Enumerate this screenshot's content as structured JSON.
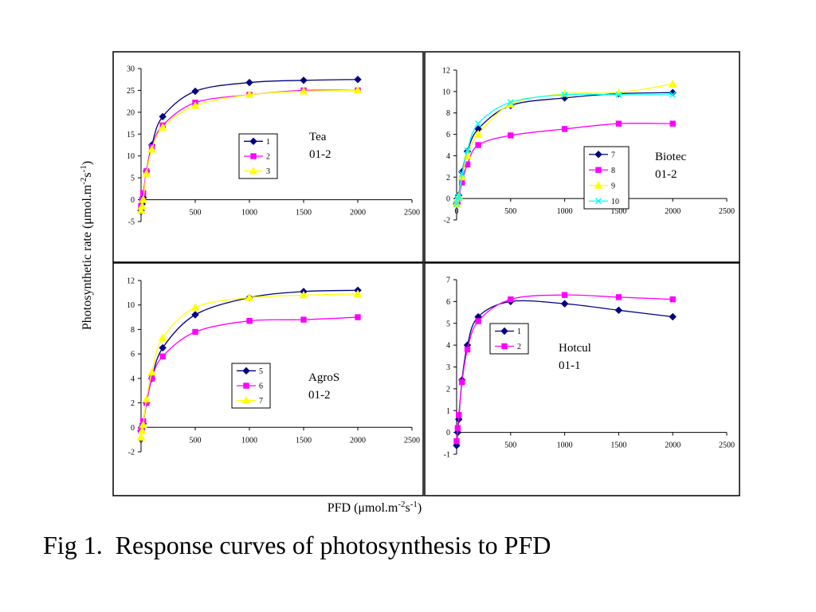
{
  "figure": {
    "caption": "Fig 1.  Response curves of photosynthesis to PFD",
    "ylabel": "Photosynthetic rate (μmol.m-2s-1)",
    "xlabel": "PFD (μmol.m-2s-1)"
  },
  "chart_data": [
    {
      "type": "line",
      "annotation": [
        "Tea",
        "01-2"
      ],
      "xlim": [
        0,
        2500
      ],
      "ylim": [
        -5,
        30
      ],
      "xticks": [
        0,
        500,
        1000,
        1500,
        2000,
        2500
      ],
      "yticks": [
        -5,
        0,
        5,
        10,
        15,
        20,
        25,
        30
      ],
      "x": [
        0,
        10,
        20,
        50,
        100,
        200,
        500,
        1000,
        1500,
        2000
      ],
      "series": [
        {
          "name": "1",
          "color": "#000080",
          "marker": "diamond",
          "values": [
            -2.5,
            -1.0,
            0.5,
            6.5,
            12.5,
            19.0,
            24.8,
            26.8,
            27.3,
            27.5
          ]
        },
        {
          "name": "2",
          "color": "#ff00ff",
          "marker": "square",
          "values": [
            -1.5,
            0.0,
            1.5,
            6.5,
            12.0,
            17.0,
            22.2,
            24.0,
            25.0,
            25.0
          ]
        },
        {
          "name": "3",
          "color": "#ffff00",
          "marker": "triangle",
          "values": [
            -2.5,
            -1.5,
            0.0,
            6.0,
            11.5,
            16.5,
            21.5,
            24.0,
            24.8,
            25.0
          ]
        }
      ]
    },
    {
      "type": "line",
      "annotation": [
        "Biotec",
        "01-2"
      ],
      "xlim": [
        0,
        2500
      ],
      "ylim": [
        -2,
        12
      ],
      "xticks": [
        0,
        500,
        1000,
        1500,
        2000,
        2500
      ],
      "yticks": [
        -2,
        0,
        2,
        4,
        6,
        8,
        10,
        12
      ],
      "x": [
        0,
        10,
        20,
        50,
        100,
        200,
        500,
        1000,
        1500,
        2000
      ],
      "series": [
        {
          "name": "7",
          "color": "#000080",
          "marker": "diamond",
          "values": [
            -0.5,
            0.0,
            0.3,
            2.5,
            4.4,
            6.5,
            8.7,
            9.4,
            9.8,
            9.9
          ]
        },
        {
          "name": "8",
          "color": "#ff00ff",
          "marker": "square",
          "values": [
            -0.5,
            -0.3,
            0.0,
            1.5,
            3.2,
            5.0,
            5.9,
            6.5,
            7.0,
            7.0
          ]
        },
        {
          "name": "9",
          "color": "#ffff00",
          "marker": "triangle",
          "values": [
            -0.5,
            0.0,
            0.2,
            2.0,
            4.0,
            6.0,
            8.8,
            9.8,
            9.9,
            10.7
          ]
        },
        {
          "name": "10",
          "color": "#00ffff",
          "marker": "x",
          "values": [
            -0.5,
            0.0,
            0.2,
            2.3,
            4.5,
            7.0,
            9.0,
            9.7,
            9.7,
            9.7
          ]
        }
      ]
    },
    {
      "type": "line",
      "annotation": [
        "AgroS",
        "01-2"
      ],
      "xlim": [
        0,
        2500
      ],
      "ylim": [
        -2,
        12
      ],
      "xticks": [
        0,
        500,
        1000,
        1500,
        2000,
        2500
      ],
      "yticks": [
        -2,
        0,
        2,
        4,
        6,
        8,
        10,
        12
      ],
      "x": [
        0,
        10,
        20,
        50,
        100,
        200,
        500,
        1000,
        1500,
        2000
      ],
      "series": [
        {
          "name": "5",
          "color": "#000080",
          "marker": "diamond",
          "values": [
            -0.3,
            0.0,
            0.3,
            2.0,
            4.0,
            6.5,
            9.2,
            10.6,
            11.1,
            11.2
          ]
        },
        {
          "name": "6",
          "color": "#ff00ff",
          "marker": "square",
          "values": [
            -0.3,
            0.0,
            0.5,
            2.0,
            4.0,
            5.8,
            7.8,
            8.7,
            8.8,
            9.0
          ]
        },
        {
          "name": "7",
          "color": "#ffff00",
          "marker": "triangle",
          "values": [
            -0.8,
            -0.3,
            0.2,
            2.3,
            4.5,
            7.3,
            9.8,
            10.6,
            10.8,
            10.9
          ]
        }
      ]
    },
    {
      "type": "line",
      "annotation": [
        "Hotcul",
        "01-1"
      ],
      "xlim": [
        0,
        2500
      ],
      "ylim": [
        -1,
        7
      ],
      "xticks": [
        0,
        500,
        1000,
        1500,
        2000,
        2500
      ],
      "yticks": [
        -1,
        0,
        1,
        2,
        3,
        4,
        5,
        6,
        7
      ],
      "x": [
        0,
        10,
        20,
        50,
        100,
        200,
        500,
        1000,
        1500,
        2000
      ],
      "series": [
        {
          "name": "1",
          "color": "#000080",
          "marker": "diamond",
          "values": [
            -0.6,
            0.0,
            0.6,
            2.4,
            4.0,
            5.3,
            6.0,
            5.9,
            5.6,
            5.3
          ]
        },
        {
          "name": "2",
          "color": "#ff00ff",
          "marker": "square",
          "values": [
            -0.4,
            0.2,
            0.8,
            2.3,
            3.8,
            5.1,
            6.1,
            6.3,
            6.2,
            6.1
          ]
        }
      ]
    }
  ]
}
